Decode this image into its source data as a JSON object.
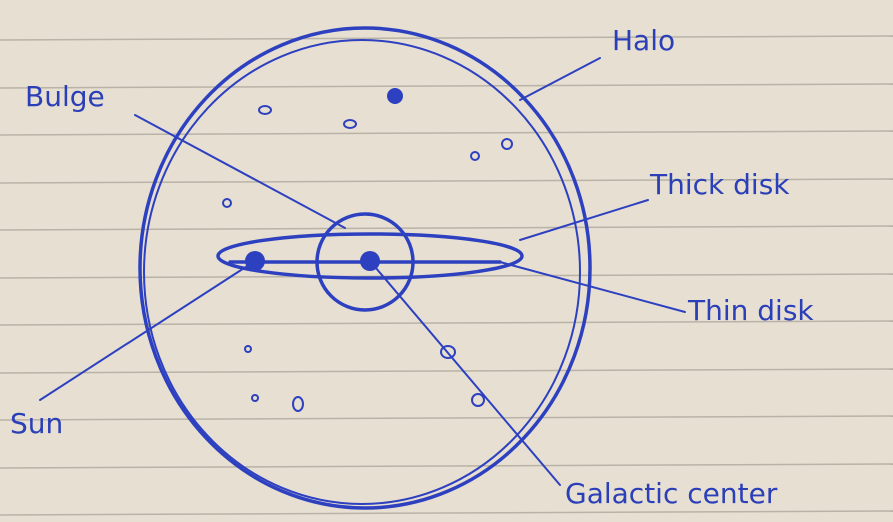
{
  "nodes": [
    {
      "label": "Halo"
    },
    {
      "label": "Bulge"
    },
    {
      "label": "Thick disk"
    },
    {
      "label": "Thin disk"
    },
    {
      "label": "Sun"
    },
    {
      "label": "Galactic center"
    }
  ]
}
